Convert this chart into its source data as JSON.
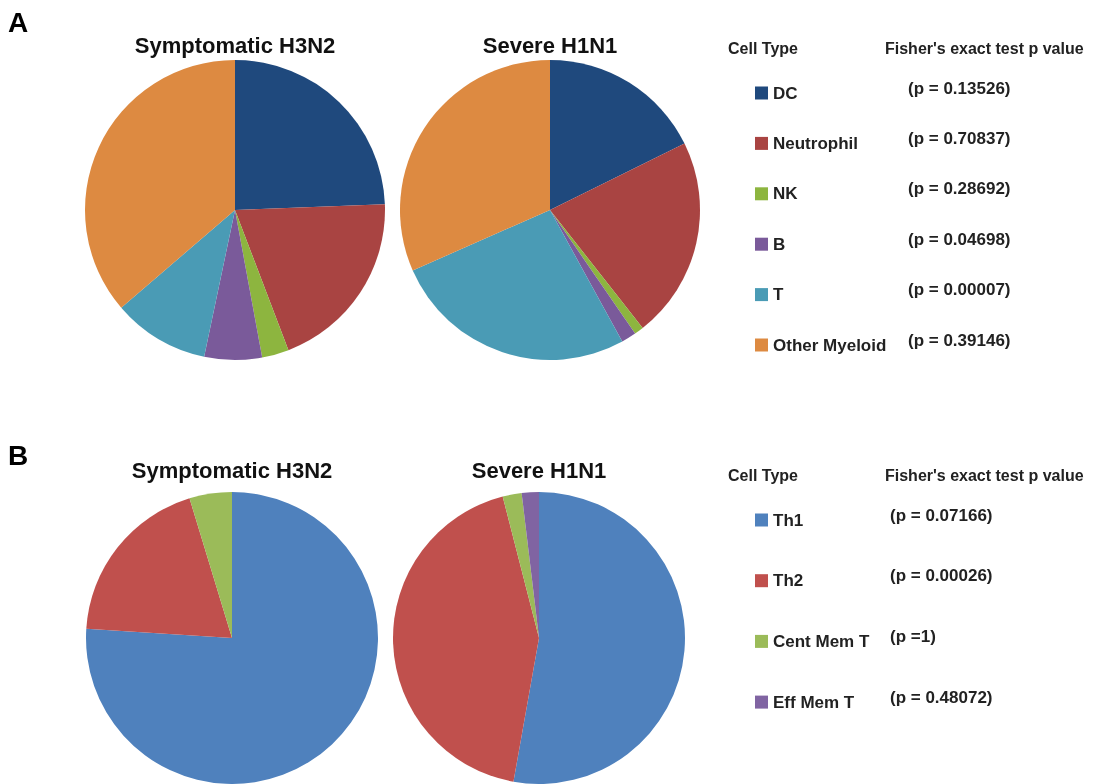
{
  "chart_data": [
    {
      "type": "pie",
      "legend": "right",
      "legend_title": "Cell Type",
      "categories": [
        "DC",
        "Neutrophil",
        "NK",
        "B",
        "T",
        "Other Myeloid"
      ],
      "colors": [
        "#1f497d",
        "#a94442",
        "#8db53f",
        "#7a5a9a",
        "#4a9bb5",
        "#dd8a41"
      ],
      "series": [
        {
          "name": "Symptomatic H3N2",
          "values": [
            24.4,
            19.8,
            2.9,
            6.2,
            10.4,
            36.3
          ]
        },
        {
          "name": "Severe H1N1",
          "values": [
            17.7,
            21.7,
            1.0,
            1.6,
            26.4,
            31.6
          ]
        }
      ],
      "annotations": [
        "A",
        "Fisher's exact test p value",
        {
          "text": "(p = 0.13526)",
          "x": "DC"
        },
        {
          "text": "(p = 0.70837)",
          "x": "Neutrophil"
        },
        {
          "text": "(p = 0.28692)",
          "x": "NK"
        },
        {
          "text": "(p = 0.04698)",
          "x": "B"
        },
        {
          "text": "(p = 0.00007)",
          "x": "T"
        },
        {
          "text": "(p = 0.39146)",
          "x": "Other Myeloid"
        }
      ]
    },
    {
      "type": "pie",
      "legend": "right",
      "legend_title": "Cell Type",
      "categories": [
        "Th1",
        "Th2",
        "Cent Mem T",
        "Eff Mem T"
      ],
      "colors": [
        "#4f81bd",
        "#c0504d",
        "#9bbb59",
        "#8064a2"
      ],
      "series": [
        {
          "name": "Symptomatic H3N2",
          "values": [
            76.0,
            19.3,
            4.7,
            0
          ]
        },
        {
          "name": "Severe H1N1",
          "values": [
            52.8,
            43.2,
            2.1,
            1.9
          ]
        }
      ],
      "annotations": [
        "B",
        "Fisher's exact test p value",
        {
          "text": "(p = 0.07166)",
          "x": "Th1"
        },
        {
          "text": "(p = 0.00026)",
          "x": "Th2"
        },
        {
          "text": "(p =1)",
          "x": "Cent Mem T"
        },
        {
          "text": "(p = 0.48072)",
          "x": "Eff Mem T"
        }
      ]
    }
  ]
}
